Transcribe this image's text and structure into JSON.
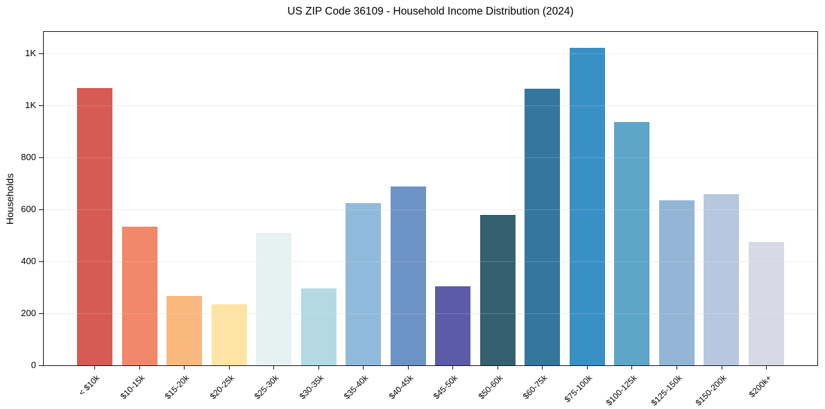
{
  "chart_data": {
    "type": "bar",
    "title": "US ZIP Code 36109 - Household Income Distribution (2024)",
    "xlabel": "",
    "ylabel": "Households",
    "categories": [
      "< $10k",
      "$10-15k",
      "$15-20k",
      "$20-25k",
      "$25-30k",
      "$30-35k",
      "$35-40k",
      "$40-45k",
      "$45-50k",
      "$50-60k",
      "$60-75k",
      "$75-100k",
      "$100-125k",
      "$125-150k",
      "$150-200k",
      "$200k+"
    ],
    "values": [
      1068,
      534,
      266,
      236,
      510,
      297,
      624,
      688,
      305,
      579,
      1064,
      1222,
      936,
      635,
      659,
      475
    ],
    "bar_colors": [
      "#d65b52",
      "#f2876a",
      "#f9b87d",
      "#fde3a4",
      "#e6f2f1",
      "#b4d9e5",
      "#90badb",
      "#6c93c5",
      "#5c5baa",
      "#35606f",
      "#34769d",
      "#3990c4",
      "#5da5c9",
      "#93b6d6",
      "#b7c8de",
      "#d7d9e5"
    ],
    "ylim": [
      0,
      1283
    ],
    "yticks": [
      {
        "value": 0,
        "label": "0"
      },
      {
        "value": 200,
        "label": "200"
      },
      {
        "value": 400,
        "label": "400"
      },
      {
        "value": 600,
        "label": "600"
      },
      {
        "value": 800,
        "label": "800"
      },
      {
        "value": 1000,
        "label": "1K"
      },
      {
        "value": 1200,
        "label": "1K"
      }
    ],
    "grid": "horizontal",
    "legend": "none",
    "colors": {
      "background": "#ffffff",
      "spine": "#151515",
      "grid": "#e9e9e9",
      "text": "#000000"
    }
  }
}
